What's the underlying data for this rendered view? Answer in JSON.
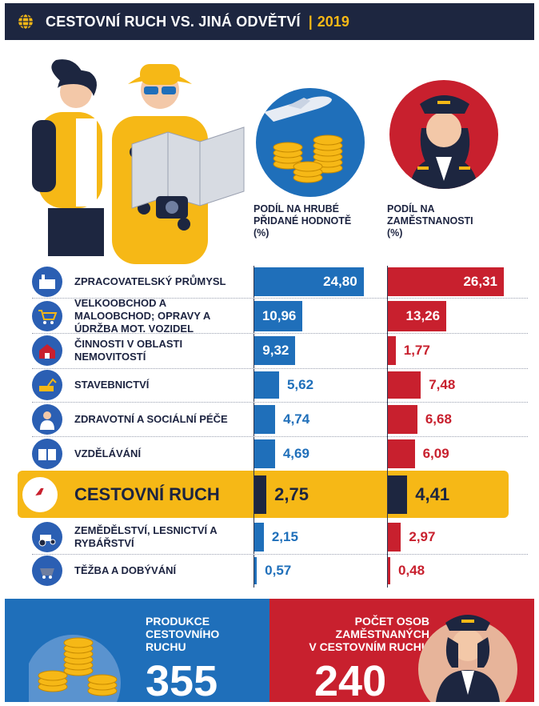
{
  "header": {
    "title": "CESTOVNÍ RUCH VS. JINÁ ODVĚTVÍ",
    "separator": "|",
    "year": "2019"
  },
  "columns": {
    "gva": {
      "line1": "PODÍL NA HRUBÉ",
      "line2": "PŘIDANÉ HODNOTĚ",
      "unit": "(%)"
    },
    "emp": {
      "line1": "PODÍL NA",
      "line2": "ZAMĚSTNANOSTI",
      "unit": "(%)"
    }
  },
  "chart_data": {
    "type": "bar",
    "categories": [
      "ZPRACOVATELSKÝ PRŮMYSL",
      "VELKOOBCHOD A MALOOBCHOD; OPRAVY A ÚDRŽBA MOT. VOZIDEL",
      "ČINNOSTI V OBLASTI NEMOVITOSTÍ",
      "STAVEBNICTVÍ",
      "ZDRAVOTNÍ A SOCIÁLNÍ PÉČE",
      "VZDĚLÁVÁNÍ",
      "CESTOVNÍ RUCH",
      "ZEMĚDĚLSTVÍ, LESNICTVÍ A RYBÁŘSTVÍ",
      "TĚŽBA A DOBÝVÁNÍ"
    ],
    "series": [
      {
        "name": "PODÍL NA HRUBÉ PŘIDANÉ HODNOTĚ (%)",
        "values": [
          24.8,
          10.96,
          9.32,
          5.62,
          4.74,
          4.69,
          2.75,
          2.15,
          0.57
        ],
        "labels": [
          "24,80",
          "10,96",
          "9,32",
          "5,62",
          "4,74",
          "4,69",
          "2,75",
          "2,15",
          "0,57"
        ],
        "color": "#1f6fba"
      },
      {
        "name": "PODÍL NA ZAMĚSTNANOSTI (%)",
        "values": [
          26.31,
          13.26,
          1.77,
          7.48,
          6.68,
          6.09,
          4.41,
          2.97,
          0.48
        ],
        "labels": [
          "26,31",
          "13,26",
          "1,77",
          "7,48",
          "6,68",
          "6,09",
          "4,41",
          "2,97",
          "0,48"
        ],
        "color": "#c8202e"
      }
    ],
    "highlight_category": "CESTOVNÍ RUCH",
    "highlight_color": "#f6b816",
    "highlight_bar_color": "#1d2640",
    "icons": [
      "factory-icon",
      "shopping-cart-icon",
      "house-icon",
      "excavator-icon",
      "doctor-icon",
      "book-icon",
      "airplane-icon",
      "tractor-icon",
      "mine-cart-icon"
    ]
  },
  "bottom": {
    "left": {
      "line1": "PRODUKCE",
      "line2": "CESTOVNÍHO",
      "line3": "RUCHU",
      "number": "355"
    },
    "right": {
      "line1": "POČET OSOB",
      "line2": "ZAMĚSTNANÝCH",
      "line3": "V CESTOVNÍM RUCHU",
      "number": "240"
    }
  },
  "colors": {
    "navy": "#1d2640",
    "blue": "#1f6fba",
    "red": "#c8202e",
    "yellow": "#f6b816"
  }
}
